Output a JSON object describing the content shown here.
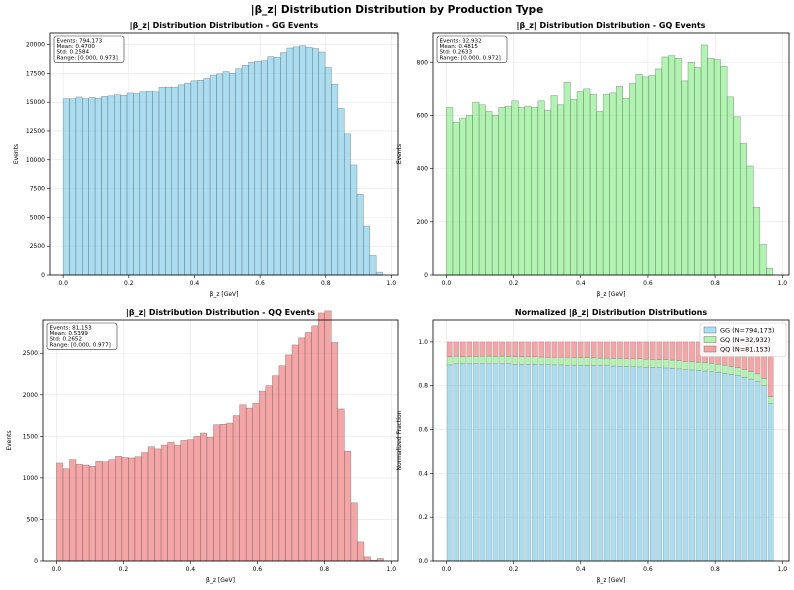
{
  "suptitle": "|β_z| Distribution Distribution by Production Type",
  "chart_data": [
    {
      "type": "bar",
      "title": "|β_z| Distribution Distribution - GG Events",
      "xlabel": "β_z [GeV]",
      "ylabel": "Events",
      "xlim": [
        -0.04,
        1.02
      ],
      "ylim": [
        0,
        21000
      ],
      "xticks": [
        "0.0",
        "0.2",
        "0.4",
        "0.6",
        "0.8",
        "1.0"
      ],
      "yticks": [
        "0",
        "2500",
        "5000",
        "7500",
        "10000",
        "12500",
        "15000",
        "17500",
        "20000"
      ],
      "grid": true,
      "color": "#87ceeb",
      "stats": [
        "Events: 794,173",
        "Mean: 0.4700",
        "Std: 0.2584",
        "Range: [0.000, 0.973]"
      ],
      "bin_width": 0.01946,
      "values": [
        15300,
        15300,
        15450,
        15300,
        15400,
        15350,
        15500,
        15550,
        15650,
        15600,
        15800,
        15750,
        15900,
        15950,
        15900,
        16300,
        16300,
        16300,
        16500,
        16650,
        16850,
        16900,
        17050,
        17350,
        17450,
        17650,
        17500,
        17900,
        18200,
        18450,
        18550,
        18600,
        18950,
        18900,
        19300,
        19700,
        19800,
        19900,
        19750,
        19650,
        19350,
        18000,
        16550,
        14450,
        12250,
        9550,
        7000,
        4250,
        1700,
        250
      ]
    },
    {
      "type": "bar",
      "title": "|β_z| Distribution Distribution - GQ Events",
      "xlabel": "β_z [GeV]",
      "ylabel": "Events",
      "xlim": [
        -0.04,
        1.02
      ],
      "ylim": [
        0,
        910
      ],
      "xticks": [
        "0.0",
        "0.2",
        "0.4",
        "0.6",
        "0.8",
        "1.0"
      ],
      "yticks": [
        "0",
        "200",
        "400",
        "600",
        "800"
      ],
      "grid": true,
      "color": "#90ee90",
      "stats": [
        "Events: 32,932",
        "Mean: 0.4815",
        "Std: 0.2633",
        "Range: [0.000, 0.972]"
      ],
      "bin_width": 0.01944,
      "values": [
        630,
        575,
        590,
        600,
        650,
        640,
        615,
        600,
        630,
        635,
        655,
        630,
        635,
        630,
        655,
        620,
        675,
        640,
        725,
        660,
        690,
        700,
        680,
        615,
        680,
        685,
        710,
        665,
        720,
        755,
        745,
        750,
        775,
        820,
        825,
        815,
        730,
        800,
        780,
        865,
        815,
        810,
        785,
        670,
        595,
        495,
        410,
        255,
        115,
        25
      ]
    },
    {
      "type": "bar",
      "title": "|β_z| Distribution Distribution - QQ Events",
      "xlabel": "β_z [GeV]",
      "ylabel": "Events",
      "xlim": [
        -0.04,
        1.02
      ],
      "ylim": [
        0,
        2900
      ],
      "xticks": [
        "0.0",
        "0.2",
        "0.4",
        "0.6",
        "0.8",
        "1.0"
      ],
      "yticks": [
        "0",
        "500",
        "1000",
        "1500",
        "2000",
        "2500"
      ],
      "grid": true,
      "color": "#f08080",
      "stats": [
        "Events: 81,153",
        "Mean: 0.5399",
        "Std: 0.2652",
        "Range: [0.000, 0.977]"
      ],
      "bin_width": 0.01954,
      "values": [
        1180,
        1110,
        1220,
        1165,
        1155,
        1140,
        1200,
        1195,
        1220,
        1260,
        1245,
        1240,
        1255,
        1305,
        1375,
        1350,
        1395,
        1430,
        1395,
        1450,
        1460,
        1500,
        1540,
        1490,
        1640,
        1645,
        1660,
        1750,
        1880,
        1840,
        1900,
        2045,
        2110,
        2230,
        2350,
        2480,
        2600,
        2685,
        2750,
        2830,
        2985,
        3010,
        2630,
        1830,
        1320,
        700,
        230,
        50,
        10,
        30
      ]
    },
    {
      "type": "bar",
      "stacked": true,
      "title": "Normalized |β_z| Distribution Distributions",
      "xlabel": "β_z [GeV]",
      "ylabel": "Normalized Fraction",
      "xlim": [
        -0.04,
        1.02
      ],
      "ylim": [
        0,
        1.1
      ],
      "xticks": [
        "0.0",
        "0.2",
        "0.4",
        "0.6",
        "0.8",
        "1.0"
      ],
      "yticks": [
        "0.0",
        "0.2",
        "0.4",
        "0.6",
        "0.8",
        "1.0"
      ],
      "grid": true,
      "legend": "top-right",
      "bin_width": 0.0195,
      "bar_fraction": 0.8,
      "series": [
        {
          "name": "GG (N=794,173)",
          "color": "#87ceeb",
          "values": [
            0.895,
            0.9,
            0.9,
            0.9,
            0.9,
            0.9,
            0.9,
            0.9,
            0.9,
            0.9,
            0.898,
            0.898,
            0.897,
            0.897,
            0.896,
            0.896,
            0.895,
            0.895,
            0.894,
            0.894,
            0.893,
            0.893,
            0.892,
            0.892,
            0.891,
            0.89,
            0.889,
            0.888,
            0.887,
            0.886,
            0.884,
            0.883,
            0.882,
            0.881,
            0.879,
            0.877,
            0.875,
            0.872,
            0.87,
            0.867,
            0.864,
            0.86,
            0.856,
            0.851,
            0.846,
            0.838,
            0.83,
            0.82,
            0.8,
            0.72
          ]
        },
        {
          "name": "GQ (N=32,932)",
          "color": "#90ee90",
          "values": [
            0.037,
            0.034,
            0.033,
            0.034,
            0.034,
            0.035,
            0.035,
            0.034,
            0.035,
            0.034,
            0.035,
            0.035,
            0.035,
            0.035,
            0.035,
            0.034,
            0.035,
            0.035,
            0.036,
            0.035,
            0.036,
            0.036,
            0.035,
            0.034,
            0.035,
            0.035,
            0.036,
            0.035,
            0.036,
            0.037,
            0.037,
            0.037,
            0.037,
            0.038,
            0.038,
            0.038,
            0.036,
            0.037,
            0.037,
            0.039,
            0.038,
            0.038,
            0.038,
            0.037,
            0.036,
            0.035,
            0.035,
            0.034,
            0.033,
            0.03
          ]
        },
        {
          "name": "QQ (N=81,153)",
          "color": "#f08080",
          "values": [
            0.068,
            0.066,
            0.067,
            0.066,
            0.066,
            0.065,
            0.065,
            0.066,
            0.065,
            0.066,
            0.067,
            0.067,
            0.068,
            0.068,
            0.069,
            0.07,
            0.07,
            0.07,
            0.07,
            0.071,
            0.071,
            0.071,
            0.073,
            0.074,
            0.074,
            0.075,
            0.075,
            0.077,
            0.077,
            0.077,
            0.079,
            0.08,
            0.081,
            0.081,
            0.083,
            0.085,
            0.089,
            0.091,
            0.093,
            0.094,
            0.098,
            0.102,
            0.106,
            0.112,
            0.118,
            0.127,
            0.135,
            0.146,
            0.167,
            0.25
          ]
        }
      ]
    }
  ]
}
